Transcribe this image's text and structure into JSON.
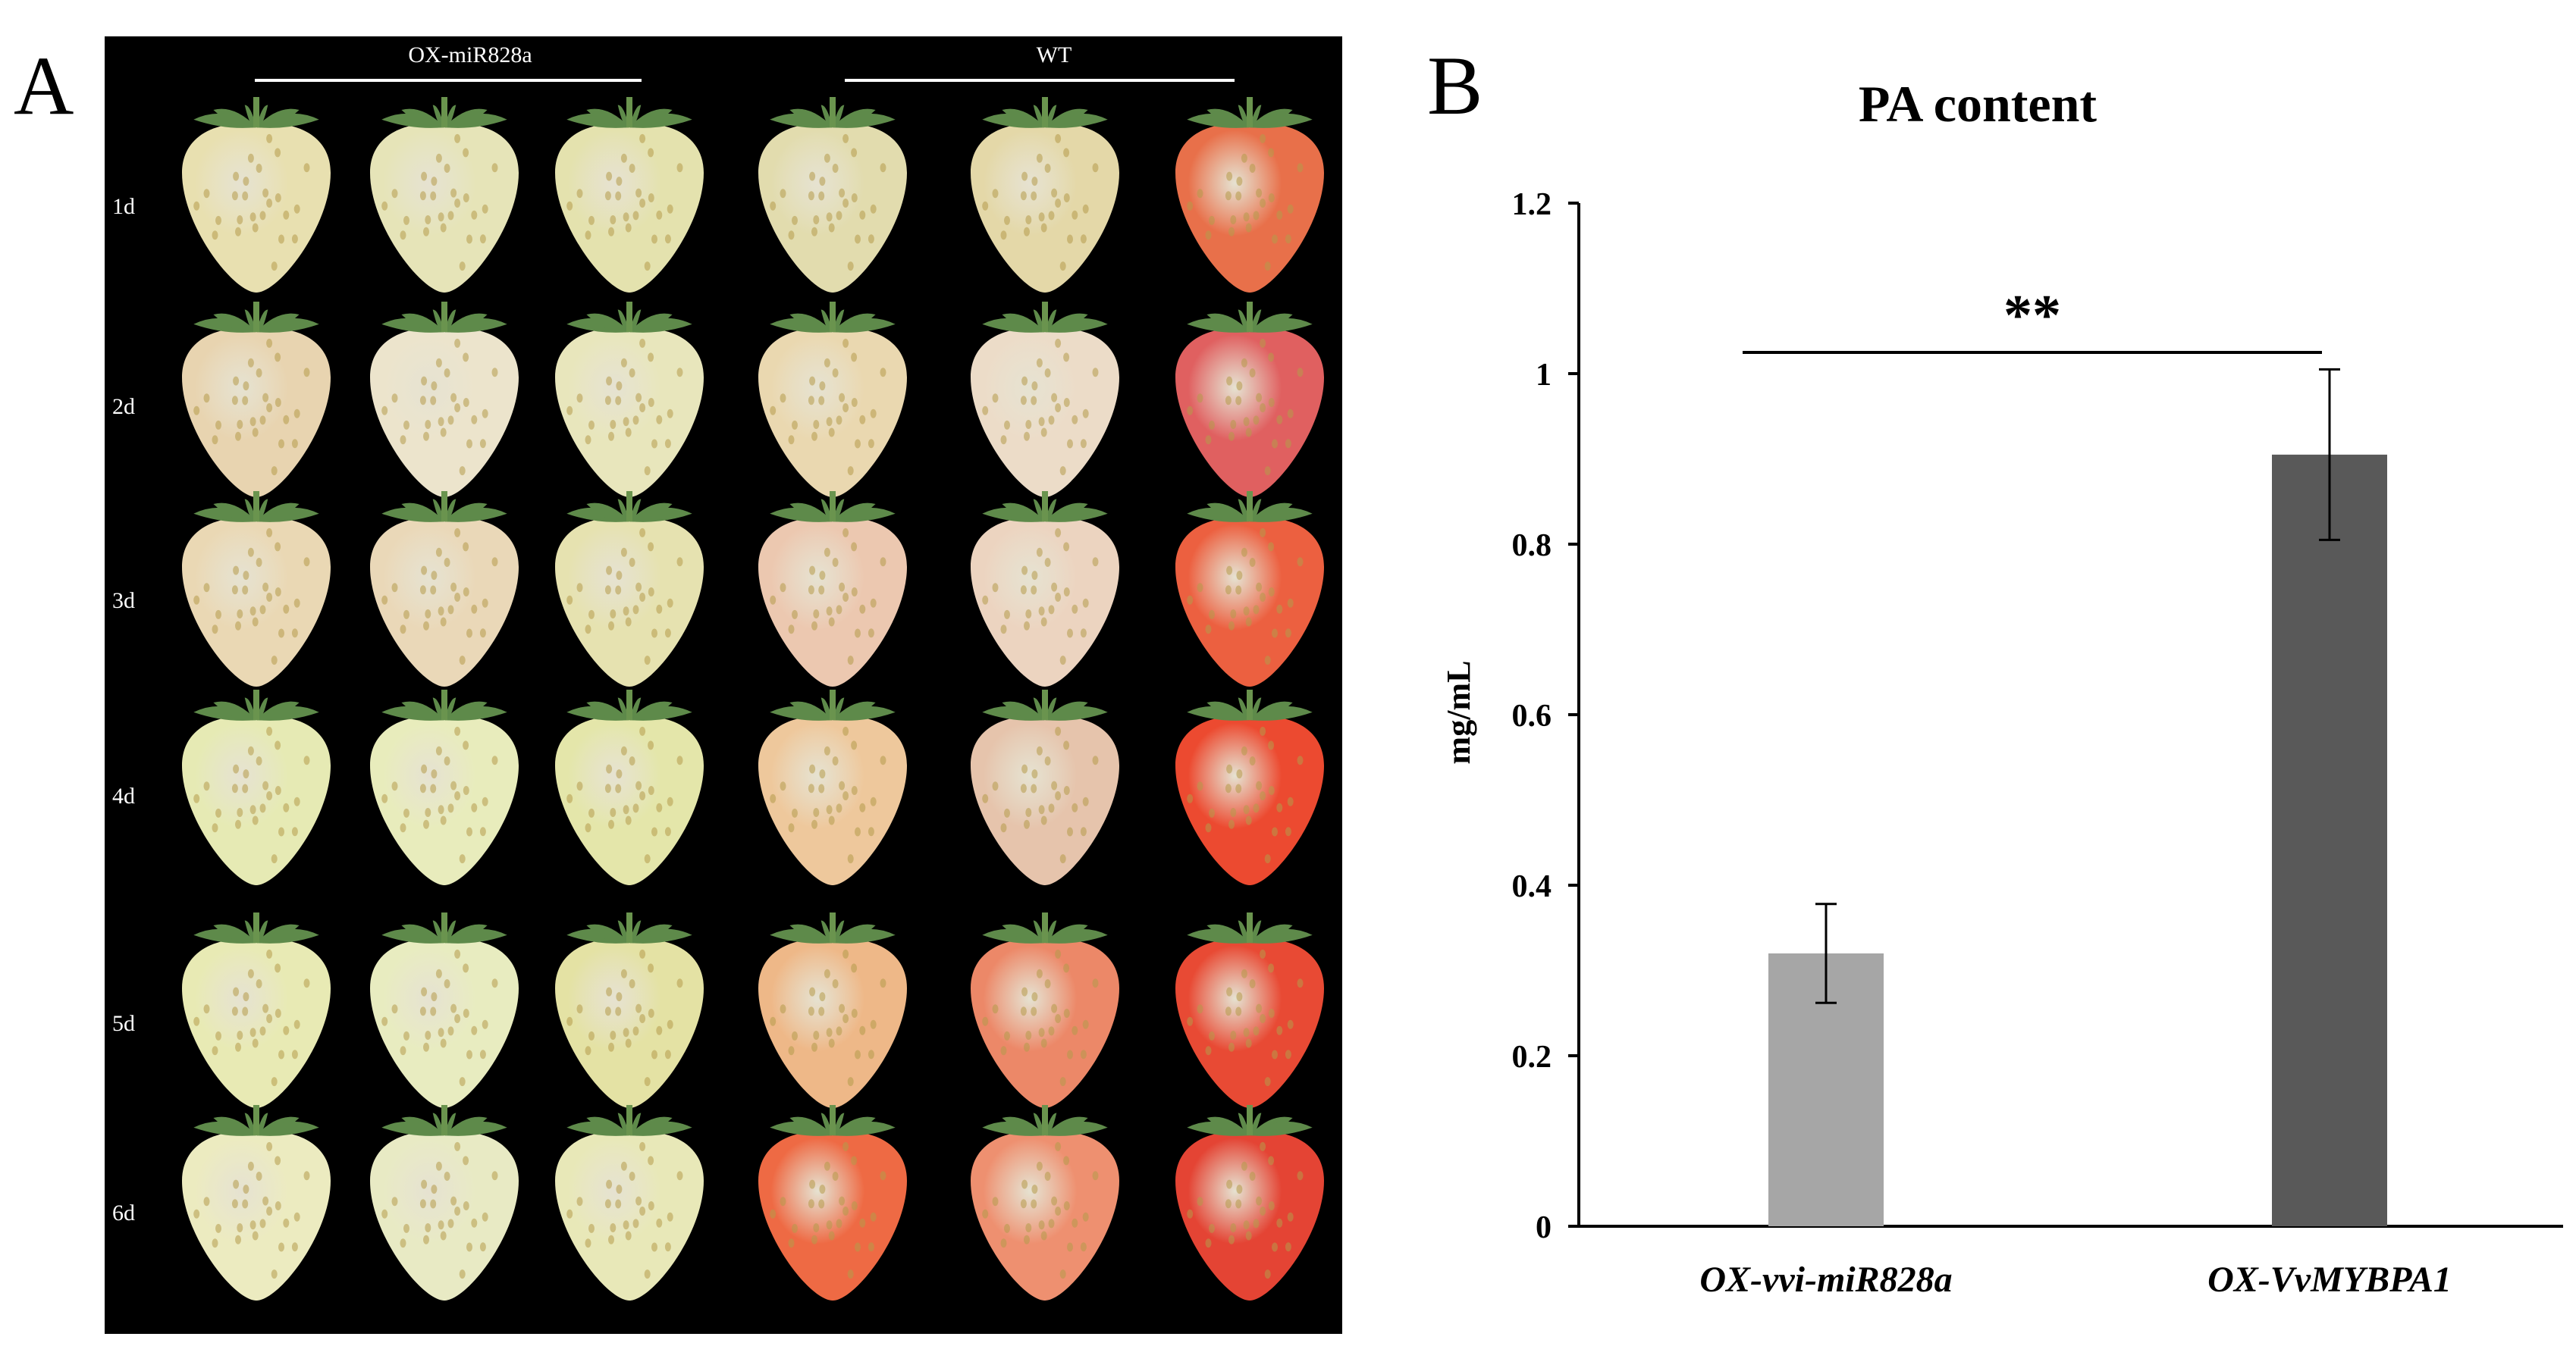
{
  "panel_a": {
    "letter": "A",
    "groups": [
      {
        "label": "OX-miR828a",
        "columns": [
          0,
          1,
          2
        ]
      },
      {
        "label": "WT",
        "columns": [
          3,
          4,
          5
        ]
      }
    ],
    "days": [
      "1d",
      "2d",
      "3d",
      "4d",
      "5d",
      "6d"
    ],
    "fruit_colors": [
      [
        "#e8e0b0",
        "#e6e4b8",
        "#e4e2ae",
        "#e2dcae",
        "#e4d8a8",
        "#e8704a"
      ],
      [
        "#e8d4b0",
        "#ece4cc",
        "#e8e6bc",
        "#ead8b0",
        "#ecdcc8",
        "#e06060"
      ],
      [
        "#ead8b4",
        "#ead8b8",
        "#e6e2b0",
        "#ecc8b0",
        "#ecd4c0",
        "#ec6040"
      ],
      [
        "#e6eab4",
        "#e8ecbc",
        "#e4e6aa",
        "#eec89c",
        "#e6c4ac",
        "#ec4a30"
      ],
      [
        "#e8eab4",
        "#e8ecc0",
        "#e4e2a4",
        "#eeb888",
        "#ec8868",
        "#e84a34"
      ],
      [
        "#ecebc0",
        "#e8eac4",
        "#e8e8b8",
        "#ee6a44",
        "#ee9070",
        "#e44434"
      ]
    ]
  },
  "panel_b": {
    "letter": "B"
  },
  "chart_data": {
    "type": "bar",
    "title": "PA content",
    "ylabel": "mg/mL",
    "xlabel": "",
    "categories": [
      "OX-vvi-miR828a",
      "OX-VvMYBPA1"
    ],
    "values": [
      0.32,
      0.905
    ],
    "errors": [
      0.058,
      0.1
    ],
    "bar_colors": [
      "#a6a6a6",
      "#595959"
    ],
    "ylim": [
      0,
      1.2
    ],
    "yticks": [
      0,
      0.2,
      0.4,
      0.6,
      0.8,
      1,
      1.2
    ],
    "ytick_labels": [
      "0",
      "0.2",
      "0.4",
      "0.6",
      "0.8",
      "1",
      "1.2"
    ],
    "grid": false,
    "significance": {
      "label": "**",
      "between": [
        0,
        1
      ]
    }
  }
}
